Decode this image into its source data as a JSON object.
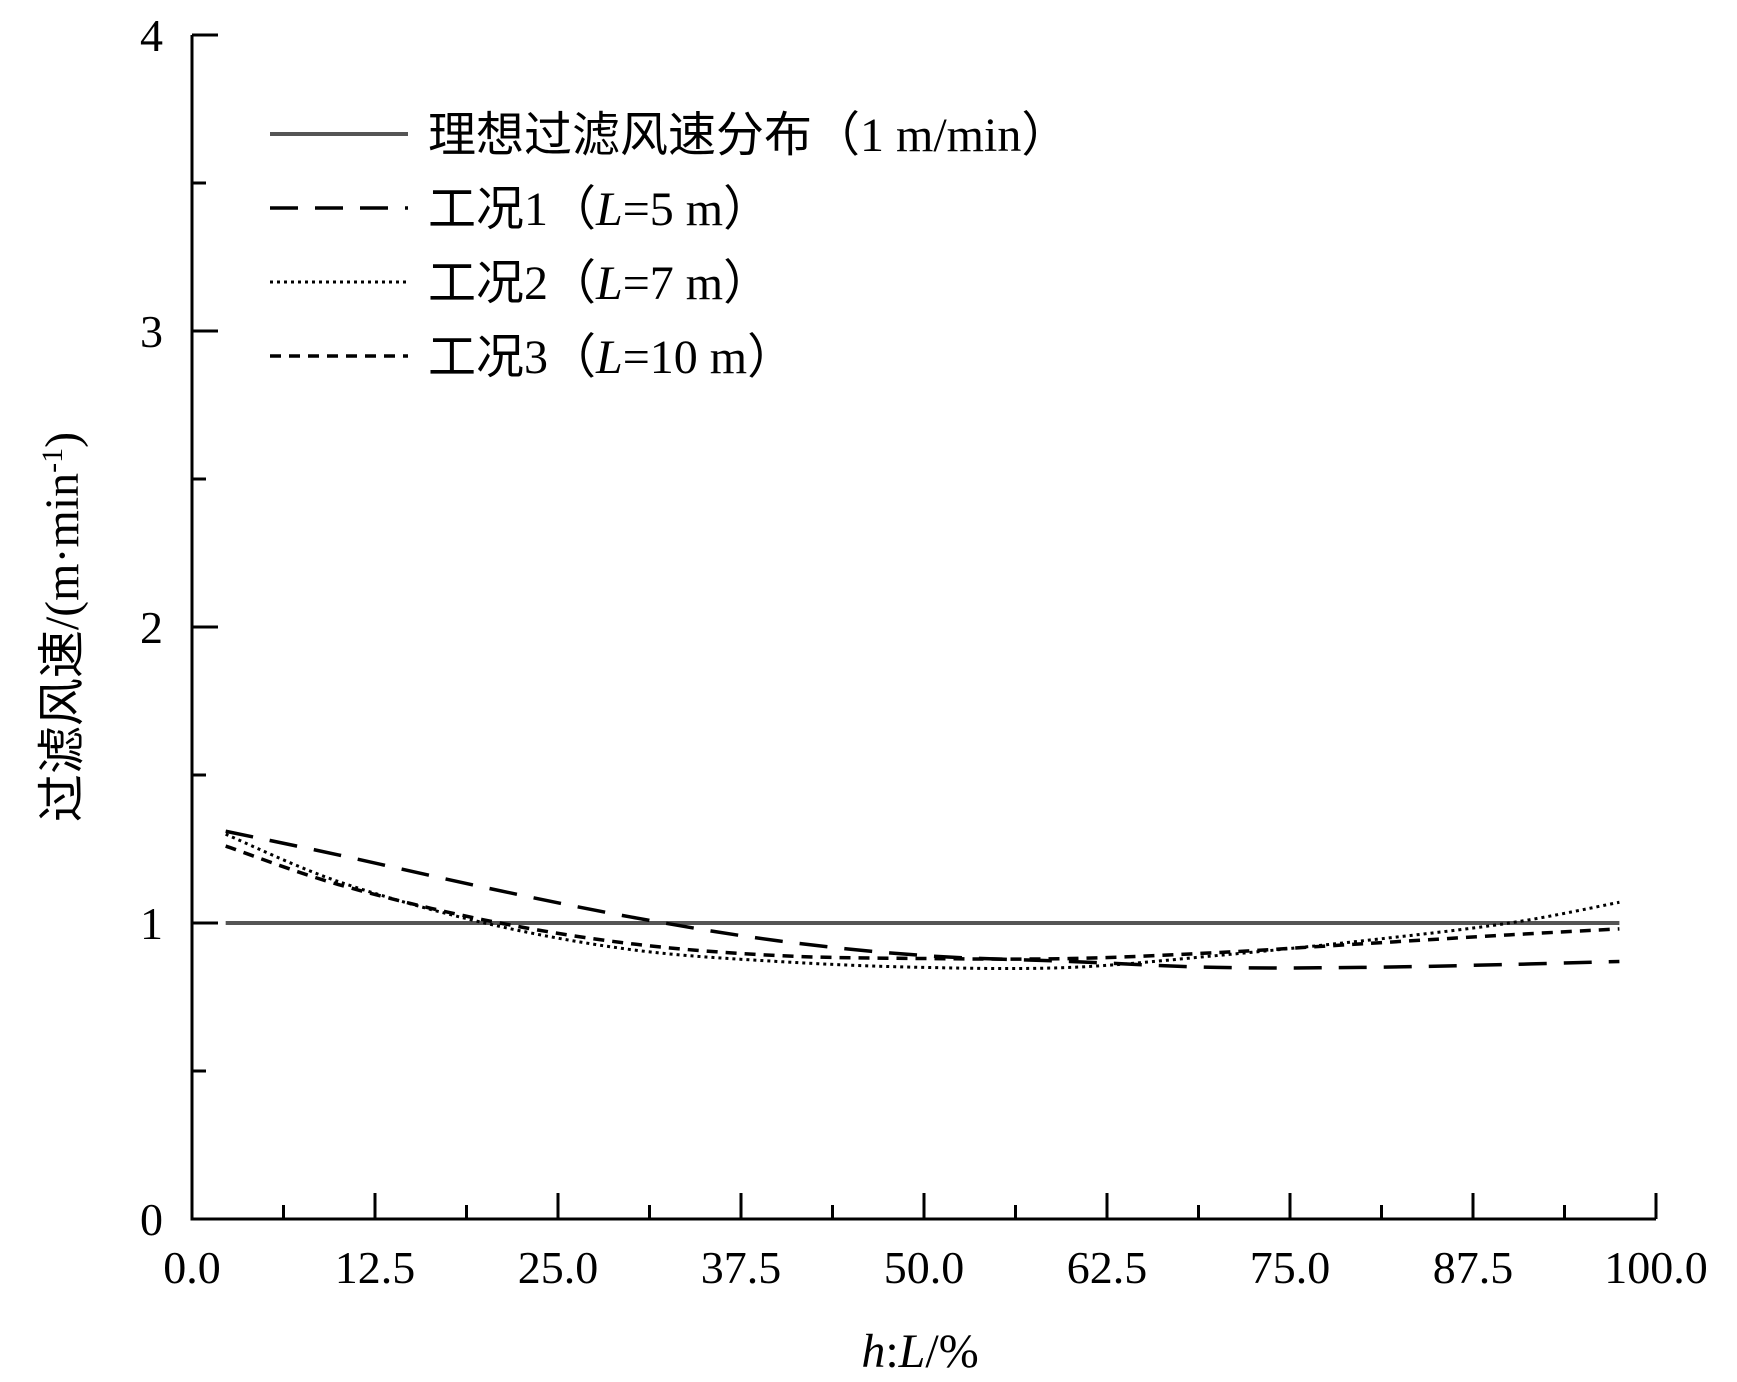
{
  "chart_data": {
    "type": "line",
    "title": "",
    "xlabel": {
      "var1": "h",
      "sep": ":",
      "var2": "L",
      "unit": "/%"
    },
    "ylabel": {
      "prefix": "过滤风速/(m·min",
      "sup": "-1",
      "suffix": ")"
    },
    "xlim": [
      0,
      100
    ],
    "ylim": [
      0,
      4
    ],
    "x_ticks": [
      "0.0",
      "12.5",
      "25.0",
      "37.5",
      "50.0",
      "62.5",
      "75.0",
      "87.5",
      "100.0"
    ],
    "x_tick_values": [
      0,
      12.5,
      25,
      37.5,
      50,
      62.5,
      75,
      87.5,
      100
    ],
    "y_ticks": [
      "0",
      "1",
      "2",
      "3",
      "4"
    ],
    "y_tick_values": [
      0,
      1,
      2,
      3,
      4
    ],
    "grid": false,
    "legend_position": "top-left",
    "series": [
      {
        "name": "理想过滤风速分布（1 m/min）",
        "legend_parts": [
          {
            "t": "理想过滤风速分布（1 m/min）",
            "i": false
          }
        ],
        "style": "solid",
        "color": "#555555",
        "x": [
          2.3,
          97.5
        ],
        "y": [
          1.0,
          1.0
        ]
      },
      {
        "name": "工况1（L=5 m）",
        "legend_parts": [
          {
            "t": "工况1（",
            "i": false
          },
          {
            "t": "L",
            "i": true
          },
          {
            "t": "=5 m）",
            "i": false
          }
        ],
        "style": "long-dash",
        "color": "#000000",
        "x": [
          2.3,
          10,
          20,
          30,
          40,
          50,
          60,
          70,
          80,
          90,
          97.5
        ],
        "y": [
          1.31,
          1.23,
          1.12,
          1.02,
          0.94,
          0.89,
          0.87,
          0.85,
          0.85,
          0.86,
          0.87
        ]
      },
      {
        "name": "工况2（L=7 m）",
        "legend_parts": [
          {
            "t": "工况2（",
            "i": false
          },
          {
            "t": "L",
            "i": true
          },
          {
            "t": "=7 m）",
            "i": false
          }
        ],
        "style": "dotted",
        "color": "#000000",
        "x": [
          2.3,
          10,
          20,
          30,
          40,
          50,
          60,
          70,
          80,
          90,
          97.5
        ],
        "y": [
          1.3,
          1.14,
          1.0,
          0.91,
          0.87,
          0.85,
          0.85,
          0.89,
          0.94,
          1.0,
          1.07
        ]
      },
      {
        "name": "工况3（L=10 m）",
        "legend_parts": [
          {
            "t": "工况3（",
            "i": false
          },
          {
            "t": "L",
            "i": true
          },
          {
            "t": "=10 m）",
            "i": false
          }
        ],
        "style": "short-dash",
        "color": "#000000",
        "x": [
          2.3,
          10,
          20,
          30,
          40,
          50,
          60,
          70,
          80,
          90,
          97.5
        ],
        "y": [
          1.26,
          1.13,
          1.01,
          0.93,
          0.89,
          0.88,
          0.88,
          0.9,
          0.93,
          0.96,
          0.98
        ]
      }
    ]
  }
}
